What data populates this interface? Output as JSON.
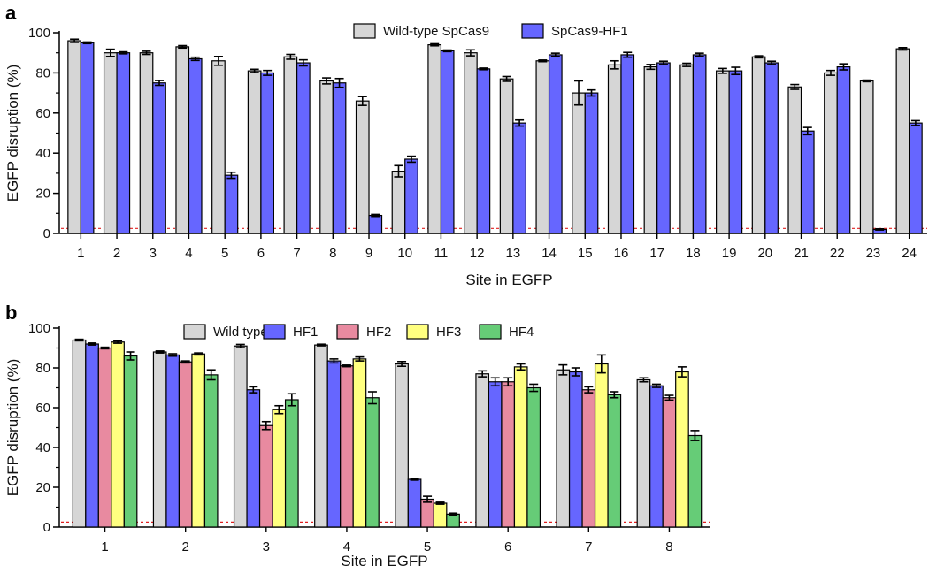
{
  "colors": {
    "Wild-type SpCas9": "#d6d6d6",
    "SpCas9-HF1": "#6666ff",
    "Wild type": "#d6d6d6",
    "HF1": "#6666ff",
    "HF2": "#e88aa0",
    "HF3": "#ffff80",
    "HF4": "#66cc77",
    "baseline": "#e02020"
  },
  "chart_data": [
    {
      "panel": "a",
      "type": "bar",
      "xlabel": "Site in EGFP",
      "ylabel": "EGFP disruption (%)",
      "ylim": [
        0,
        100
      ],
      "yticks": [
        0,
        20,
        40,
        60,
        80,
        100
      ],
      "baseline": 2.5,
      "legend_position": "top",
      "categories": [
        "1",
        "2",
        "3",
        "4",
        "5",
        "6",
        "7",
        "8",
        "9",
        "10",
        "11",
        "12",
        "13",
        "14",
        "15",
        "16",
        "17",
        "18",
        "19",
        "20",
        "21",
        "22",
        "23",
        "24"
      ],
      "series": [
        {
          "name": "Wild-type SpCas9",
          "values": [
            96,
            90,
            90,
            93,
            86,
            81,
            88,
            76,
            66,
            31,
            94,
            90,
            77,
            86,
            70,
            84,
            83,
            84,
            81,
            88,
            73,
            80,
            76,
            92
          ],
          "errors": [
            0.8,
            1.8,
            0.8,
            0.6,
            2.2,
            0.8,
            1.2,
            1.5,
            2.2,
            2.8,
            0.5,
            1.5,
            1.2,
            0.4,
            6,
            2,
            1.2,
            0.8,
            1.2,
            0.5,
            1.2,
            1.2,
            0.4,
            0.6
          ]
        },
        {
          "name": "SpCas9-HF1",
          "values": [
            95,
            90,
            75,
            87,
            29,
            80,
            85,
            75,
            9,
            37,
            91,
            82,
            55,
            89,
            70,
            89,
            85,
            89,
            81,
            85,
            51,
            83,
            2,
            55
          ]
        }
      ],
      "series_errors_b": [
        0.4,
        0.5,
        1.2,
        0.8,
        1.5,
        1.2,
        1.5,
        2.2,
        0.5,
        1.5,
        0.4,
        0.4,
        1.5,
        0.8,
        1.5,
        1.2,
        0.8,
        0.8,
        1.8,
        0.8,
        1.8,
        1.5,
        0.3,
        1.2
      ]
    },
    {
      "panel": "b",
      "type": "bar",
      "xlabel": "Site in EGFP",
      "ylabel": "EGFP disruption (%)",
      "ylim": [
        0,
        100
      ],
      "yticks": [
        0,
        20,
        40,
        60,
        80,
        100
      ],
      "baseline": 2.5,
      "legend_position": "top",
      "categories": [
        "1",
        "2",
        "3",
        "4",
        "5",
        "6",
        "7",
        "8"
      ],
      "series": [
        {
          "name": "Wild type",
          "values": [
            94,
            88,
            91,
            91.5,
            82,
            77,
            79,
            74
          ],
          "errors": [
            0.4,
            0.5,
            0.8,
            0.4,
            1.2,
            1.5,
            2.5,
            1.0
          ]
        },
        {
          "name": "HF1",
          "values": [
            92,
            86.5,
            69,
            83.5,
            24,
            73,
            78,
            71
          ],
          "errors": [
            0.5,
            0.6,
            1.5,
            1.0,
            0.4,
            2.0,
            2.0,
            0.8
          ]
        },
        {
          "name": "HF2",
          "values": [
            90,
            83,
            51,
            81,
            14,
            73,
            69,
            65
          ],
          "errors": [
            0.4,
            0.5,
            2.0,
            0.4,
            1.5,
            2.0,
            1.5,
            1.2
          ]
        },
        {
          "name": "HF3",
          "values": [
            93,
            87,
            59,
            84.5,
            12,
            80.5,
            82,
            78
          ],
          "errors": [
            0.6,
            0.5,
            2.0,
            1.0,
            0.5,
            1.5,
            4.5,
            2.5
          ]
        },
        {
          "name": "HF4",
          "values": [
            86,
            76.5,
            64,
            65,
            6.5,
            70,
            66.5,
            46
          ],
          "errors": [
            2.0,
            2.5,
            3.0,
            3.0,
            0.5,
            1.8,
            1.5,
            2.5
          ]
        }
      ]
    }
  ],
  "panel_labels": {
    "a": "a",
    "b": "b"
  }
}
